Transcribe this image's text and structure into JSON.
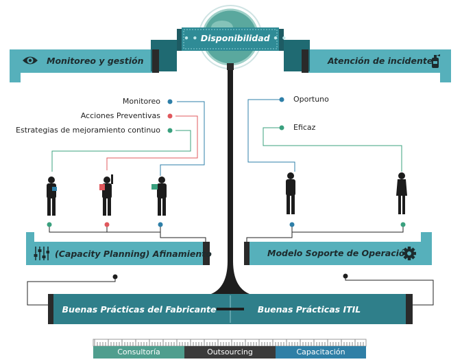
{
  "center": {
    "title": "Disponibilidad"
  },
  "left_header": {
    "label": "Monitoreo y gestión",
    "icon": "eye-icon"
  },
  "right_header": {
    "label": "Atención de incidentes",
    "icon": "fire-extinguisher-icon"
  },
  "left_legend": [
    {
      "label": "Monitoreo",
      "color": "#2e7fa8"
    },
    {
      "label": "Acciones Preventivas",
      "color": "#e0585d"
    },
    {
      "label": "Estrategias de mejoramiento continuo",
      "color": "#3aa07e"
    }
  ],
  "right_legend": [
    {
      "label": "Oportuno",
      "color": "#2e7fa8"
    },
    {
      "label": "Eficaz",
      "color": "#3aa07e"
    }
  ],
  "left_box": {
    "label": "(Capacity Planning) Afinamiento",
    "icon": "sliders-icon"
  },
  "right_box": {
    "label": "Modelo Soporte de Operación",
    "icon": "gear-icon"
  },
  "bottom_bar": {
    "left": "Buenas Prácticas del Fabricante",
    "right": "Buenas Prácticas ITIL"
  },
  "tabs": [
    {
      "label": "Consultoría",
      "color": "#4f9e8e"
    },
    {
      "label": "Outsourcing",
      "color": "#3a3a3a"
    },
    {
      "label": "Capacitación",
      "color": "#2f7fa6"
    }
  ],
  "colors": {
    "teal": "#3d9aa7",
    "dark_teal": "#2b6f77",
    "dark": "#222222"
  }
}
